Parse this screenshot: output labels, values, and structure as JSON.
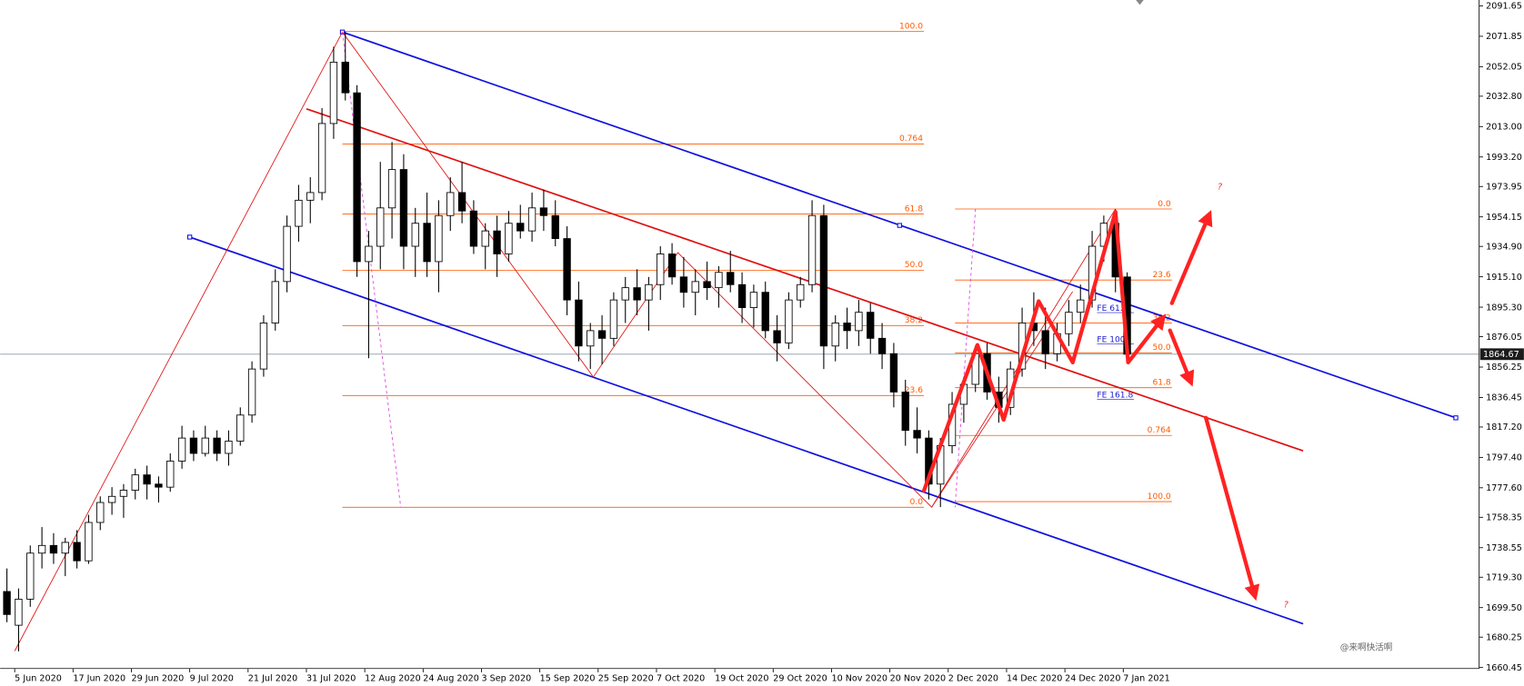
{
  "chart_data": {
    "type": "candlestick",
    "categories": [
      null,
      "5 Jun 2020",
      null,
      null,
      null,
      null,
      "17 Jun 2020",
      null,
      null,
      null,
      null,
      "29 Jun 2020",
      null,
      null,
      null,
      null,
      "9 Jul 2020",
      null,
      null,
      null,
      null,
      "21 Jul 2020",
      null,
      null,
      null,
      null,
      "31 Jul 2020",
      null,
      null,
      null,
      null,
      "12 Aug 2020",
      null,
      null,
      null,
      null,
      "24 Aug 2020",
      null,
      null,
      null,
      null,
      "3 Sep 2020",
      null,
      null,
      null,
      null,
      "15 Sep 2020",
      null,
      null,
      null,
      null,
      "25 Sep 2020",
      null,
      null,
      null,
      null,
      "7 Oct 2020",
      null,
      null,
      null,
      null,
      "19 Oct 2020",
      null,
      null,
      null,
      null,
      "29 Oct 2020",
      null,
      null,
      null,
      null,
      "10 Nov 2020",
      null,
      null,
      null,
      null,
      "20 Nov 2020",
      null,
      null,
      null,
      null,
      "2 Dec 2020",
      null,
      null,
      null,
      null,
      "14 Dec 2020",
      null,
      null,
      null,
      null,
      "24 Dec 2020",
      null,
      null,
      null,
      null,
      "7 Jan 2021"
    ],
    "open": [
      1710,
      1688,
      1705,
      1735,
      1740,
      1735,
      1742,
      1730,
      1755,
      1768,
      1772,
      1776,
      1786,
      1780,
      1778,
      1795,
      1810,
      1800,
      1810,
      1800,
      1808,
      1825,
      1855,
      1885,
      1912,
      1948,
      1965,
      1970,
      2015,
      2055,
      2035,
      1925,
      1935,
      1960,
      1985,
      1935,
      1950,
      1925,
      1955,
      1970,
      1958,
      1935,
      1945,
      1930,
      1950,
      1945,
      1960,
      1955,
      1940,
      1900,
      1870,
      1880,
      1875,
      1900,
      1908,
      1900,
      1910,
      1930,
      1915,
      1905,
      1912,
      1908,
      1918,
      1910,
      1895,
      1905,
      1880,
      1872,
      1900,
      1910,
      1955,
      1870,
      1885,
      1880,
      1892,
      1875,
      1865,
      1840,
      1815,
      1810,
      1780,
      1805,
      1832,
      1845,
      1865,
      1840,
      1830,
      1855,
      1885,
      1880,
      1865,
      1878,
      1892,
      1900,
      1935,
      1950,
      1915
    ],
    "high": [
      1725,
      1712,
      1740,
      1752,
      1748,
      1745,
      1750,
      1760,
      1772,
      1778,
      1780,
      1790,
      1792,
      1785,
      1800,
      1818,
      1815,
      1818,
      1815,
      1815,
      1830,
      1860,
      1890,
      1920,
      1955,
      1975,
      1980,
      2025,
      2065,
      2075,
      2040,
      1945,
      1990,
      2003,
      1995,
      1960,
      1970,
      1965,
      1980,
      1990,
      1965,
      1950,
      1955,
      1958,
      1962,
      1970,
      1972,
      1965,
      1948,
      1912,
      1885,
      1890,
      1905,
      1915,
      1920,
      1915,
      1935,
      1937,
      1928,
      1920,
      1925,
      1922,
      1932,
      1918,
      1910,
      1912,
      1890,
      1905,
      1915,
      1965,
      1962,
      1890,
      1895,
      1900,
      1898,
      1885,
      1872,
      1848,
      1830,
      1815,
      1810,
      1840,
      1850,
      1870,
      1872,
      1850,
      1860,
      1895,
      1905,
      1895,
      1885,
      1900,
      1910,
      1945,
      1955,
      1959,
      1918
    ],
    "low": [
      1690,
      1671,
      1700,
      1725,
      1728,
      1720,
      1725,
      1728,
      1750,
      1760,
      1758,
      1770,
      1770,
      1768,
      1775,
      1790,
      1795,
      1798,
      1795,
      1792,
      1805,
      1820,
      1850,
      1880,
      1905,
      1938,
      1950,
      1965,
      2005,
      2030,
      1915,
      1862,
      1920,
      1940,
      1920,
      1915,
      1915,
      1905,
      1945,
      1950,
      1930,
      1920,
      1915,
      1925,
      1940,
      1938,
      1945,
      1935,
      1890,
      1860,
      1855,
      1858,
      1870,
      1885,
      1890,
      1880,
      1900,
      1910,
      1895,
      1890,
      1900,
      1895,
      1905,
      1885,
      1882,
      1875,
      1860,
      1868,
      1895,
      1905,
      1855,
      1860,
      1868,
      1870,
      1865,
      1855,
      1830,
      1805,
      1800,
      1770,
      1765,
      1800,
      1820,
      1840,
      1835,
      1820,
      1825,
      1850,
      1870,
      1855,
      1860,
      1870,
      1885,
      1895,
      1925,
      1905,
      1860
    ],
    "close": [
      1695,
      1705,
      1735,
      1740,
      1735,
      1742,
      1730,
      1755,
      1768,
      1772,
      1776,
      1786,
      1780,
      1778,
      1795,
      1810,
      1800,
      1810,
      1800,
      1808,
      1825,
      1855,
      1885,
      1912,
      1948,
      1965,
      1970,
      2015,
      2055,
      2035,
      1925,
      1935,
      1960,
      1985,
      1935,
      1950,
      1925,
      1955,
      1970,
      1958,
      1935,
      1945,
      1930,
      1950,
      1945,
      1960,
      1955,
      1940,
      1900,
      1870,
      1880,
      1875,
      1900,
      1908,
      1900,
      1910,
      1930,
      1915,
      1905,
      1912,
      1908,
      1918,
      1910,
      1895,
      1905,
      1880,
      1872,
      1900,
      1910,
      1955,
      1870,
      1885,
      1880,
      1892,
      1875,
      1865,
      1840,
      1815,
      1810,
      1780,
      1805,
      1832,
      1845,
      1865,
      1840,
      1830,
      1855,
      1885,
      1880,
      1865,
      1878,
      1892,
      1900,
      1935,
      1950,
      1915,
      1864.67
    ],
    "ylim": [
      1659.8,
      2095.5
    ],
    "yticks": [
      2091.65,
      2071.85,
      2052.05,
      {
        "value": 2032.8,
        "label": "2032.80"
      },
      {
        "value": 2013,
        "label": "2013.00"
      },
      {
        "value": 1993.2,
        "label": "1993.20"
      },
      1973.95,
      1954.15,
      {
        "value": 1934.9,
        "label": "1934.90"
      },
      {
        "value": 1915.1,
        "label": "1915.10"
      },
      {
        "value": 1895.3,
        "label": "1895.30"
      },
      1876.05,
      1856.25,
      1836.45,
      {
        "value": 1817.2,
        "label": "1817.20"
      },
      {
        "value": 1797.4,
        "label": "1797.40"
      },
      {
        "value": 1777.6,
        "label": "1777.60"
      },
      1758.35,
      1738.55,
      {
        "value": 1719.3,
        "label": "1719.30"
      },
      {
        "value": 1699.5,
        "label": "1699.50"
      },
      1680.25,
      1660.45
    ],
    "current_price": 1864.67,
    "fib_retracement": [
      {
        "label": "100.0",
        "value": 2075
      },
      {
        "label": "0.764",
        "value": 2001.7
      },
      {
        "label": "61.8",
        "value": 1956
      },
      {
        "label": "50.0",
        "value": 1919.4
      },
      {
        "label": "38.2",
        "value": 1883.3
      },
      {
        "label": "23.6",
        "value": 1837.7
      },
      {
        "label": "0.0",
        "value": 1764.9
      }
    ],
    "fib_expansion": [
      {
        "label": "0.0",
        "value": 1959.3
      },
      {
        "label": "23.6",
        "value": 1913
      },
      {
        "label": "38.2",
        "value": 1885
      },
      {
        "label": "50.0",
        "value": 1865.5
      },
      {
        "label": "61.8",
        "value": 1842.8
      },
      {
        "label": "0.764",
        "value": 1811.7
      },
      {
        "label": "100.0",
        "value": 1768.6
      }
    ],
    "fe_labels": [
      {
        "label": "FE 61.8",
        "value": 1893
      },
      {
        "label": "FE 100",
        "value": 1872.5
      },
      {
        "label": "FE 161.8",
        "value": 1836.4
      }
    ],
    "annotations": [
      "?",
      "?"
    ],
    "watermark": "@来啊快活啊"
  }
}
